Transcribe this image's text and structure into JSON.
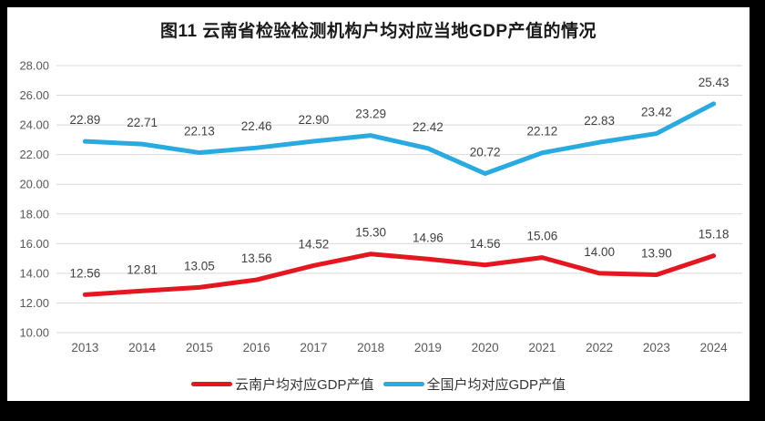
{
  "frame": {
    "page_background": "#000000",
    "chart_background": "#ffffff"
  },
  "colors": {
    "gridline": "#d9d9d9",
    "axis_text": "#595959",
    "data_label_text": "#404040",
    "title_text": "#1a1a1a"
  },
  "chart_data": {
    "type": "line",
    "title": "图11 云南省检验检测机构户均对应当地GDP产值的情况",
    "categories": [
      "2013",
      "2014",
      "2015",
      "2016",
      "2017",
      "2018",
      "2019",
      "2020",
      "2021",
      "2022",
      "2023",
      "2024"
    ],
    "series": [
      {
        "name": "云南户均对应GDP产值",
        "color": "#e4161f",
        "values": [
          12.56,
          12.81,
          13.05,
          13.56,
          14.52,
          15.3,
          14.96,
          14.56,
          15.06,
          14.0,
          13.9,
          15.18
        ]
      },
      {
        "name": "全国户均对应GDP产值",
        "color": "#29abe2",
        "values": [
          22.89,
          22.71,
          22.13,
          22.46,
          22.9,
          23.29,
          22.42,
          20.72,
          22.12,
          22.83,
          23.42,
          25.43
        ]
      }
    ],
    "xlabel": "",
    "ylabel": "",
    "ylim": [
      10,
      28
    ],
    "ytick_step": 2,
    "ytick_format": "2dp",
    "data_labels": true,
    "data_label_format": "2dp",
    "grid": true,
    "legend_position": "bottom"
  }
}
